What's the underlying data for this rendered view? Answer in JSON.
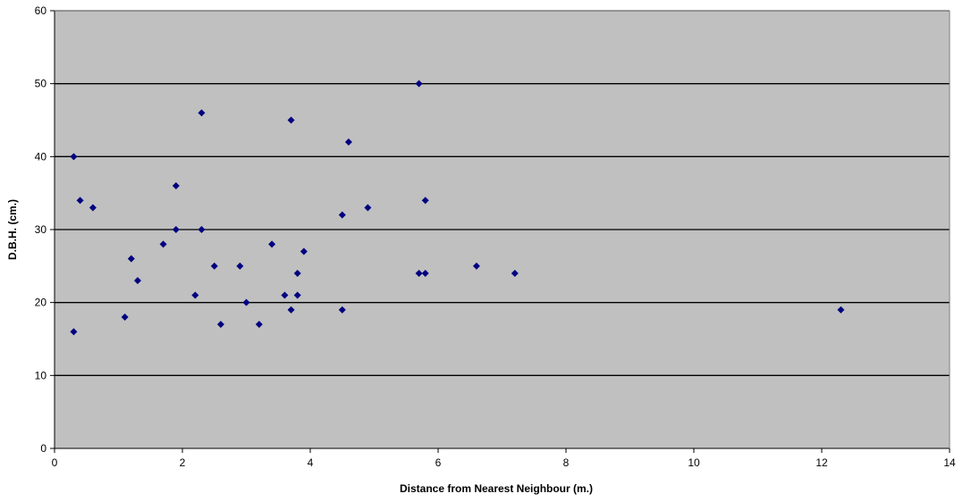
{
  "chart_data": {
    "type": "scatter",
    "xlabel": "Distance from Nearest Neighbour (m.)",
    "ylabel": "D.B.H. (cm.)",
    "xlim": [
      0,
      14
    ],
    "ylim": [
      0,
      60
    ],
    "x_ticks": [
      0,
      2,
      4,
      6,
      8,
      10,
      12,
      14
    ],
    "y_ticks": [
      0,
      10,
      20,
      30,
      40,
      50,
      60
    ],
    "grid": "horizontal major gridlines",
    "legend": "none",
    "colors": {
      "plot_background": "#c0c0c0",
      "marker": "#000080",
      "gridline": "#000000"
    },
    "marker_shape": "diamond",
    "points": [
      {
        "x": 0.3,
        "y": 40
      },
      {
        "x": 0.3,
        "y": 16
      },
      {
        "x": 0.4,
        "y": 34
      },
      {
        "x": 0.6,
        "y": 33
      },
      {
        "x": 1.1,
        "y": 18
      },
      {
        "x": 1.2,
        "y": 26
      },
      {
        "x": 1.3,
        "y": 23
      },
      {
        "x": 1.7,
        "y": 28
      },
      {
        "x": 1.9,
        "y": 36
      },
      {
        "x": 1.9,
        "y": 30
      },
      {
        "x": 2.2,
        "y": 21
      },
      {
        "x": 2.3,
        "y": 46
      },
      {
        "x": 2.3,
        "y": 30
      },
      {
        "x": 2.5,
        "y": 25
      },
      {
        "x": 2.6,
        "y": 17
      },
      {
        "x": 2.9,
        "y": 25
      },
      {
        "x": 3.0,
        "y": 20
      },
      {
        "x": 3.2,
        "y": 17
      },
      {
        "x": 3.4,
        "y": 28
      },
      {
        "x": 3.6,
        "y": 21
      },
      {
        "x": 3.7,
        "y": 45
      },
      {
        "x": 3.7,
        "y": 19
      },
      {
        "x": 3.8,
        "y": 24
      },
      {
        "x": 3.8,
        "y": 21
      },
      {
        "x": 3.9,
        "y": 27
      },
      {
        "x": 4.5,
        "y": 32
      },
      {
        "x": 4.5,
        "y": 19
      },
      {
        "x": 4.6,
        "y": 42
      },
      {
        "x": 4.9,
        "y": 33
      },
      {
        "x": 5.7,
        "y": 50
      },
      {
        "x": 5.7,
        "y": 24
      },
      {
        "x": 5.8,
        "y": 34
      },
      {
        "x": 5.8,
        "y": 24
      },
      {
        "x": 6.6,
        "y": 25
      },
      {
        "x": 7.2,
        "y": 24
      },
      {
        "x": 12.3,
        "y": 19
      }
    ]
  }
}
